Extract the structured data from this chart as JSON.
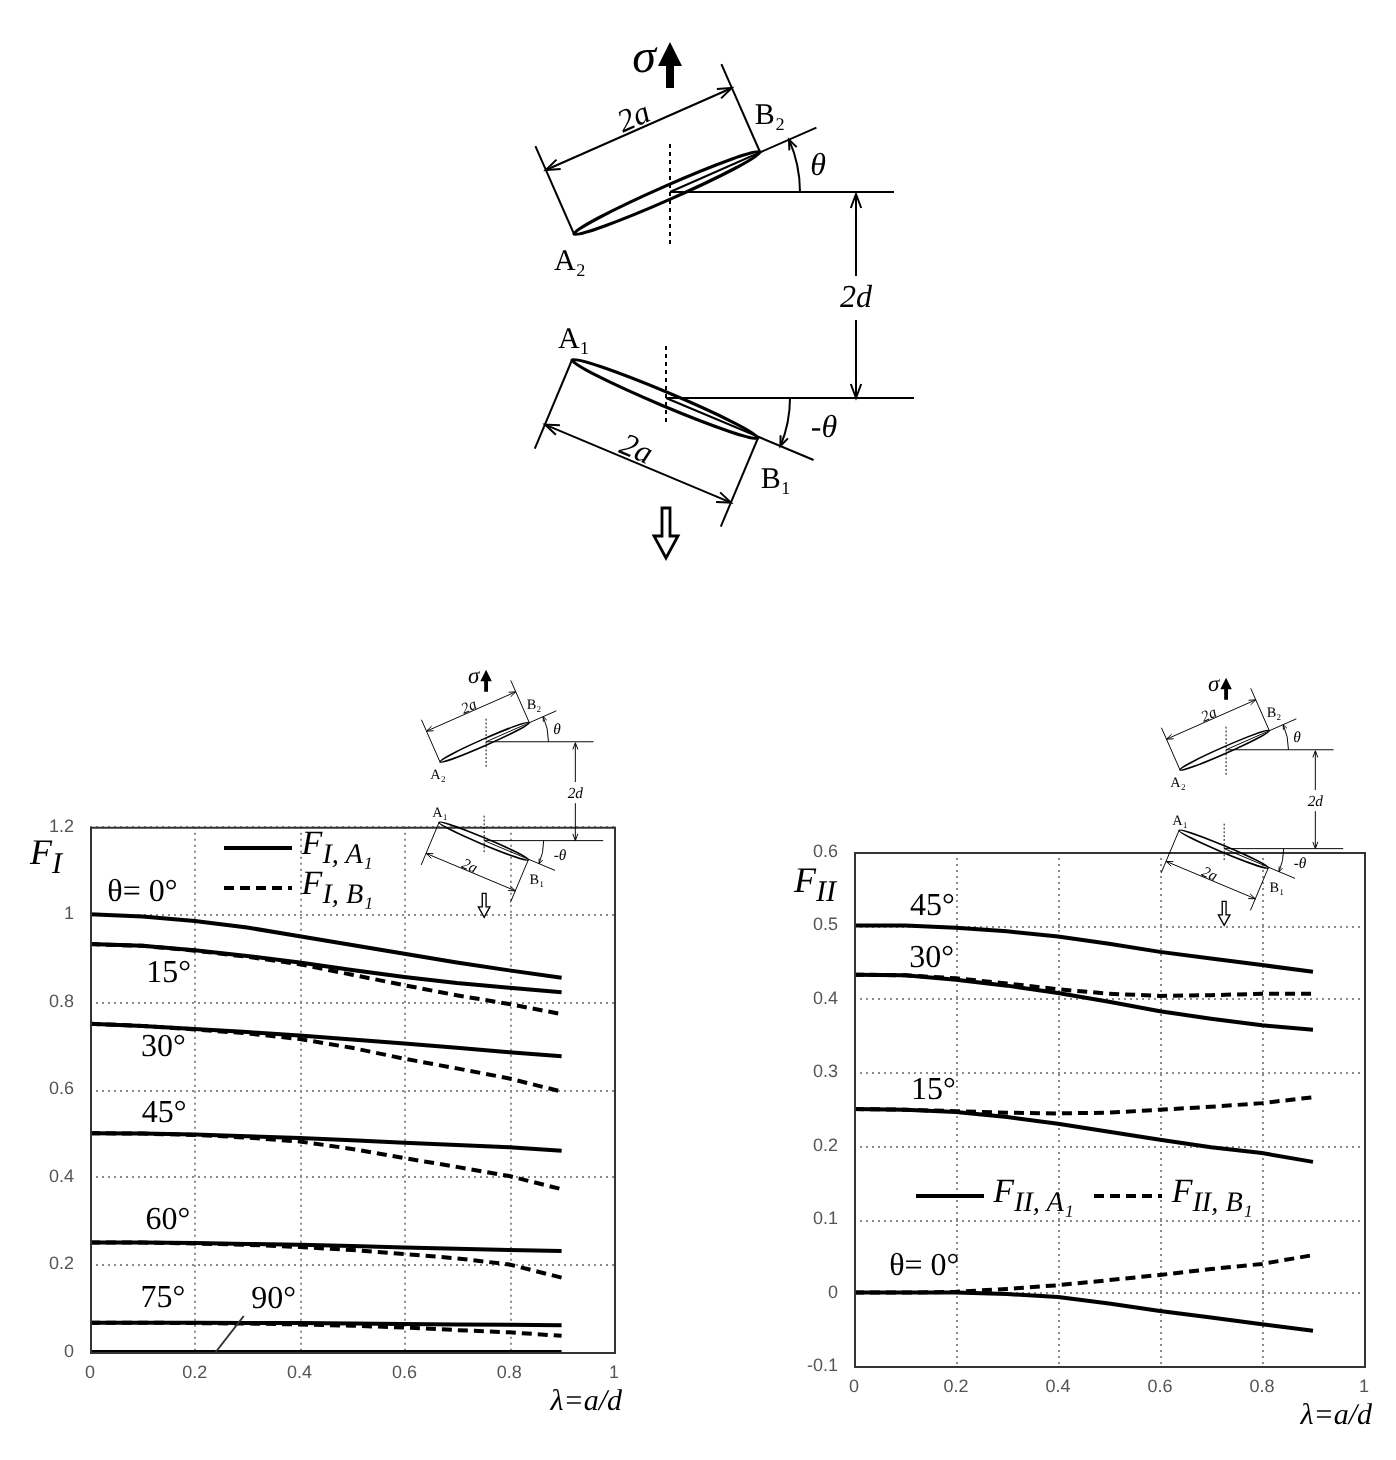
{
  "chart_data": [
    {
      "type": "other",
      "annotations": [
        "σ",
        "2a",
        "B₂",
        "θ",
        "A₂",
        "2d",
        "A₁",
        "-θ",
        "2a",
        "B₁"
      ]
    },
    {
      "type": "line",
      "x": [
        0,
        0.1,
        0.2,
        0.3,
        0.4,
        0.5,
        0.6,
        0.7,
        0.8,
        0.9
      ],
      "xlim": [
        0,
        1
      ],
      "xticks": [
        0,
        0.2,
        0.4,
        0.6,
        0.8,
        1
      ],
      "ylim": [
        0,
        1.2
      ],
      "yticks": [
        0,
        0.2,
        0.4,
        0.6,
        0.8,
        1,
        1.2
      ],
      "xlabel": "λ=a/d",
      "ylabel": "F$_{I}$",
      "grid": true,
      "legend": "top",
      "marker": "none",
      "series": [
        {
          "name": "F$_{I, A₁}$",
          "color": "#000000",
          "line_style": "solid",
          "values": [
            1,
            0.995,
            0.985,
            0.97,
            0.95,
            0.93,
            0.91,
            0.89,
            0.872,
            0.855
          ]
        },
        {
          "color": "#000000",
          "line_style": "solid",
          "values": [
            0.932,
            0.928,
            0.918,
            0.905,
            0.89,
            0.873,
            0.857,
            0.843,
            0.832,
            0.822
          ]
        },
        {
          "name": "F$_{I, B₁}$",
          "color": "#000000",
          "line_style": "dashed",
          "values": [
            0.932,
            0.928,
            0.917,
            0.903,
            0.886,
            0.862,
            0.838,
            0.815,
            0.795,
            0.772
          ]
        },
        {
          "color": "#000000",
          "line_style": "solid",
          "values": [
            0.75,
            0.745,
            0.738,
            0.731,
            0.723,
            0.714,
            0.705,
            0.695,
            0.685,
            0.676
          ]
        },
        {
          "color": "#000000",
          "line_style": "dashed",
          "values": [
            0.75,
            0.745,
            0.737,
            0.728,
            0.715,
            0.695,
            0.67,
            0.648,
            0.625,
            0.595
          ]
        },
        {
          "color": "#000000",
          "line_style": "solid",
          "values": [
            0.5,
            0.499,
            0.497,
            0.493,
            0.489,
            0.484,
            0.478,
            0.473,
            0.468,
            0.46
          ]
        },
        {
          "color": "#000000",
          "line_style": "dashed",
          "values": [
            0.5,
            0.499,
            0.496,
            0.49,
            0.481,
            0.464,
            0.443,
            0.423,
            0.402,
            0.372
          ]
        },
        {
          "color": "#000000",
          "line_style": "solid",
          "values": [
            0.25,
            0.25,
            0.249,
            0.247,
            0.245,
            0.242,
            0.239,
            0.236,
            0.233,
            0.231
          ]
        },
        {
          "color": "#000000",
          "line_style": "dashed",
          "values": [
            0.25,
            0.25,
            0.248,
            0.245,
            0.24,
            0.233,
            0.224,
            0.214,
            0.2,
            0.17
          ]
        },
        {
          "color": "#000000",
          "line_style": "solid",
          "values": [
            0.067,
            0.067,
            0.067,
            0.066,
            0.066,
            0.065,
            0.064,
            0.063,
            0.062,
            0.061
          ]
        },
        {
          "color": "#000000",
          "line_style": "dashed",
          "values": [
            0.067,
            0.067,
            0.066,
            0.065,
            0.063,
            0.06,
            0.056,
            0.05,
            0.045,
            0.037
          ]
        },
        {
          "color": "#000000",
          "line_style": "solid",
          "values": [
            0,
            0,
            0,
            0,
            0,
            0,
            0,
            0,
            0,
            0
          ]
        }
      ],
      "annotations": [
        {
          "text": "θ= 0°",
          "x": 0.1,
          "y": 0.995
        },
        {
          "text": "15°",
          "x": 0.15,
          "y": 0.923
        },
        {
          "text": "30°",
          "x": 0.14,
          "y": 0.742
        },
        {
          "text": "45°",
          "x": 0.13,
          "y": 0.498
        },
        {
          "text": "60°",
          "x": 0.16,
          "y": 0.249
        },
        {
          "text": "75°",
          "x": 0.12,
          "y": 0.067
        },
        {
          "text": "90°",
          "x": 0.24,
          "y": 0
        },
        "σ",
        "2a",
        "B₂",
        "θ",
        "A₂",
        "2d",
        "A₁",
        "-θ",
        "2a",
        "B₁"
      ]
    },
    {
      "type": "line",
      "x": [
        0,
        0.1,
        0.2,
        0.3,
        0.4,
        0.5,
        0.6,
        0.7,
        0.8,
        0.9
      ],
      "xlim": [
        0,
        1
      ],
      "xticks": [
        0,
        0.2,
        0.4,
        0.6,
        0.8,
        1
      ],
      "ylim": [
        -0.1,
        0.6
      ],
      "yticks": [
        -0.1,
        0,
        0.1,
        0.2,
        0.3,
        0.4,
        0.5,
        0.6
      ],
      "xlabel": "λ=a/d",
      "ylabel": "F$_{II}$",
      "grid": true,
      "legend": "bottom",
      "marker": "none",
      "series": [
        {
          "name": "F$_{II, A₁}$",
          "color": "#000000",
          "line_style": "solid",
          "values": [
            0.5,
            0.5,
            0.497,
            0.492,
            0.485,
            0.475,
            0.464,
            0.455,
            0.446,
            0.437
          ]
        },
        {
          "color": "#000000",
          "line_style": "solid",
          "values": [
            0.433,
            0.432,
            0.426,
            0.418,
            0.408,
            0.396,
            0.383,
            0.373,
            0.364,
            0.358
          ]
        },
        {
          "name": "F$_{II, B₁}$",
          "color": "#000000",
          "line_style": "dashed",
          "values": [
            0.433,
            0.432,
            0.428,
            0.421,
            0.413,
            0.407,
            0.404,
            0.405,
            0.407,
            0.407
          ]
        },
        {
          "color": "#000000",
          "line_style": "solid",
          "values": [
            0.25,
            0.249,
            0.246,
            0.239,
            0.23,
            0.219,
            0.208,
            0.198,
            0.19,
            0.178
          ]
        },
        {
          "color": "#000000",
          "line_style": "dashed",
          "values": [
            0.25,
            0.249,
            0.247,
            0.245,
            0.244,
            0.245,
            0.249,
            0.253,
            0.258,
            0.266
          ]
        },
        {
          "color": "#000000",
          "line_style": "solid",
          "values": [
            0,
            0,
            0,
            -0.002,
            -0.006,
            -0.015,
            -0.025,
            -0.034,
            -0.043,
            -0.052
          ]
        },
        {
          "color": "#000000",
          "line_style": "dashed",
          "values": [
            0,
            0,
            0.001,
            0.005,
            0.01,
            0.017,
            0.024,
            0.032,
            0.039,
            0.051
          ]
        }
      ],
      "annotations": [
        {
          "text": "45°",
          "x": 0.15,
          "y": 0.499
        },
        {
          "text": "30°",
          "x": 0.16,
          "y": 0.428
        },
        {
          "text": "15°",
          "x": 0.14,
          "y": 0.248
        },
        {
          "text": "θ= 0°",
          "x": 0.13,
          "y": 0
        },
        "σ",
        "2a",
        "B₂",
        "θ",
        "A₂",
        "2d",
        "A₁",
        "-θ",
        "2a",
        "B₁"
      ]
    }
  ]
}
